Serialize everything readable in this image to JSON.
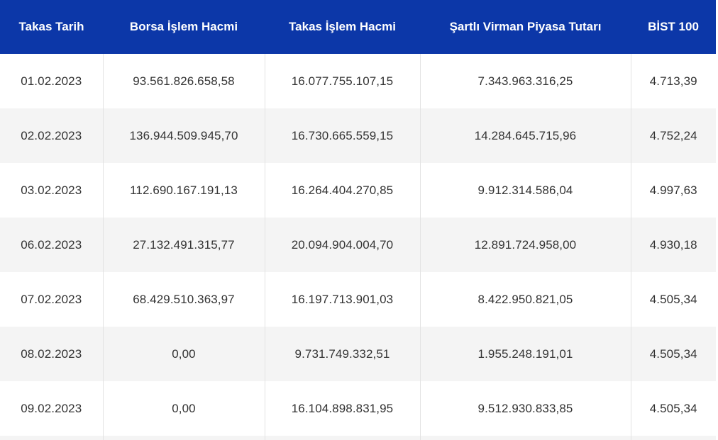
{
  "table": {
    "headers": [
      "Takas Tarih",
      "Borsa İşlem Hacmi",
      "Takas İşlem Hacmi",
      "Şartlı Virman Piyasa Tutarı",
      "BİST 100"
    ],
    "rows": [
      [
        "01.02.2023",
        "93.561.826.658,58",
        "16.077.755.107,15",
        "7.343.963.316,25",
        "4.713,39"
      ],
      [
        "02.02.2023",
        "136.944.509.945,70",
        "16.730.665.559,15",
        "14.284.645.715,96",
        "4.752,24"
      ],
      [
        "03.02.2023",
        "112.690.167.191,13",
        "16.264.404.270,85",
        "9.912.314.586,04",
        "4.997,63"
      ],
      [
        "06.02.2023",
        "27.132.491.315,77",
        "20.094.904.004,70",
        "12.891.724.958,00",
        "4.930,18"
      ],
      [
        "07.02.2023",
        "68.429.510.363,97",
        "16.197.713.901,03",
        "8.422.950.821,05",
        "4.505,34"
      ],
      [
        "08.02.2023",
        "0,00",
        "9.731.749.332,51",
        "1.955.248.191,01",
        "4.505,34"
      ],
      [
        "09.02.2023",
        "0,00",
        "16.104.898.831,95",
        "9.512.930.833,85",
        "4.505,34"
      ]
    ]
  },
  "colors": {
    "header_bg": "#0c37a8",
    "header_text": "#ffffff",
    "row_alt_bg": "#f4f4f4",
    "cell_text": "#333333"
  }
}
